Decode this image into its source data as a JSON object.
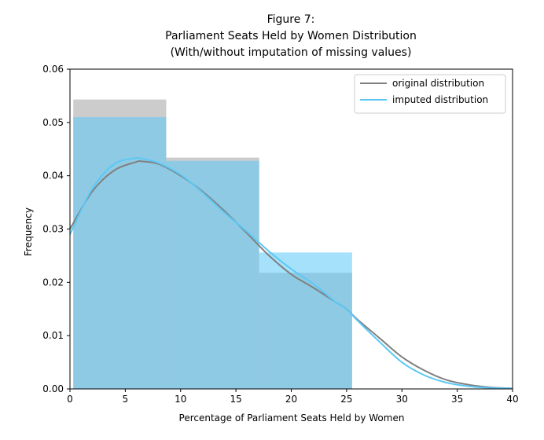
{
  "chart_data": {
    "type": "histogram+kde",
    "title_lines": [
      "Figure 7:",
      "Parliament Seats Held by Women Distribution",
      "(With/without imputation of missing values)"
    ],
    "xlabel": "Percentage of Parliament Seats Held by Women",
    "ylabel": "Frequency",
    "xlim": [
      0,
      40
    ],
    "ylim": [
      0,
      0.06
    ],
    "xticks": [
      0,
      5,
      10,
      15,
      20,
      25,
      30,
      35,
      40
    ],
    "yticks": [
      0.0,
      0.01,
      0.02,
      0.03,
      0.04,
      0.05,
      0.06
    ],
    "ytick_labels": [
      "0.00",
      "0.01",
      "0.02",
      "0.03",
      "0.04",
      "0.05",
      "0.06"
    ],
    "grid": false,
    "legend_position": "top-right",
    "histograms": [
      {
        "series": "original",
        "color": "#b0b0b0",
        "bins": [
          {
            "x0": 0.3,
            "x1": 8.7,
            "value": 0.0543
          },
          {
            "x0": 8.7,
            "x1": 17.1,
            "value": 0.0434
          },
          {
            "x0": 17.1,
            "x1": 25.5,
            "value": 0.0218
          }
        ]
      },
      {
        "series": "imputed",
        "color": "#5bc8f5",
        "bins": [
          {
            "x0": 0.3,
            "x1": 8.7,
            "value": 0.051
          },
          {
            "x0": 8.7,
            "x1": 17.1,
            "value": 0.0428
          },
          {
            "x0": 17.1,
            "x1": 25.5,
            "value": 0.0256
          }
        ]
      }
    ],
    "series": [
      {
        "name": "original distribution",
        "color": "#808080",
        "x": [
          0,
          2,
          4,
          6,
          6.5,
          8,
          10,
          12,
          14,
          16,
          18,
          20,
          22,
          24,
          25,
          26,
          28,
          30,
          32,
          34,
          36,
          38,
          40
        ],
        "y": [
          0.03,
          0.037,
          0.041,
          0.0426,
          0.0427,
          0.0422,
          0.04,
          0.037,
          0.0333,
          0.0292,
          0.025,
          0.0215,
          0.019,
          0.0163,
          0.015,
          0.013,
          0.0095,
          0.006,
          0.0035,
          0.0017,
          0.0008,
          0.0003,
          0.0001
        ]
      },
      {
        "name": "imputed distribution",
        "color": "#5bc8f5",
        "x": [
          0,
          2,
          4,
          6,
          6.5,
          8,
          10,
          12,
          14,
          16,
          18,
          20,
          22,
          24,
          25,
          26,
          28,
          30,
          32,
          34,
          36,
          38,
          40
        ],
        "y": [
          0.029,
          0.0375,
          0.0422,
          0.0433,
          0.0432,
          0.0424,
          0.0402,
          0.0368,
          0.033,
          0.0295,
          0.0258,
          0.0225,
          0.0197,
          0.0163,
          0.015,
          0.0128,
          0.0088,
          0.005,
          0.0026,
          0.0012,
          0.0005,
          0.0002,
          0.0001
        ]
      }
    ]
  }
}
